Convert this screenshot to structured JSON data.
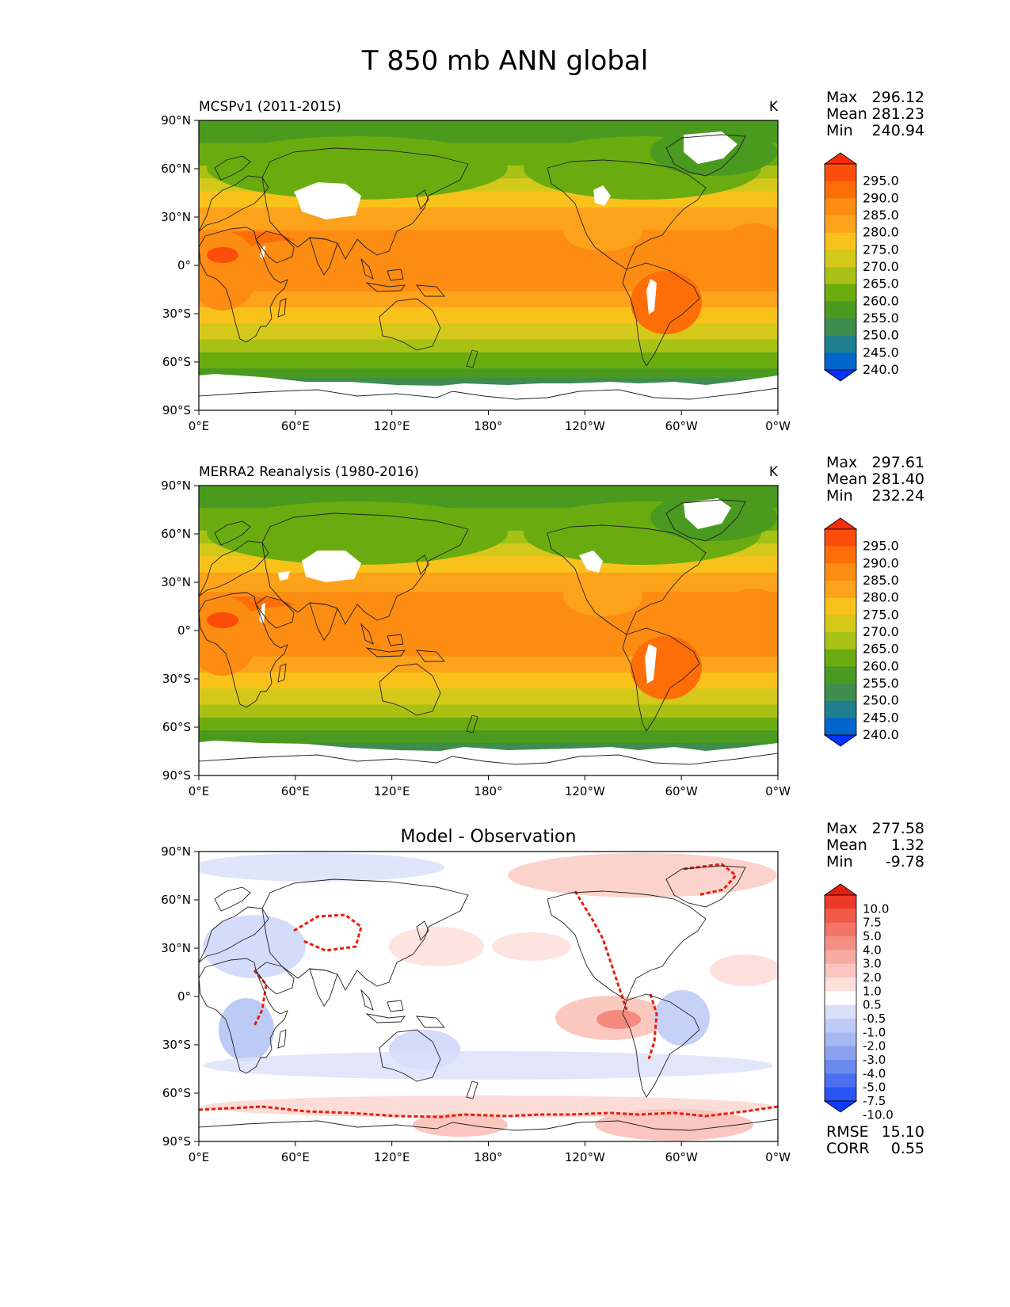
{
  "figure": {
    "title": "T 850 mb ANN global"
  },
  "colors": {
    "abs_levels": [
      "#0033ff",
      "#0066cc",
      "#1f7f8f",
      "#3f8c4f",
      "#4a9a1f",
      "#6aac10",
      "#a7c214",
      "#d4c81a",
      "#f9c21b",
      "#fca31b",
      "#fd8c13",
      "#fd6e08",
      "#fc4e0a",
      "#fb2a0a"
    ],
    "diff_levels": [
      "#0b3bff",
      "#2955f5",
      "#4a6ff0",
      "#6a8aee",
      "#8aa2f0",
      "#a6b8f4",
      "#c0ccf7",
      "#d9e0fa",
      "#ffffff",
      "#fde0dc",
      "#fbc6bf",
      "#f8aba1",
      "#f58f84",
      "#f27466",
      "#ef5a49",
      "#ec3a28",
      "#e81d0a"
    ],
    "land_mask": "#ffffff",
    "coast": "#222222"
  },
  "panels": [
    {
      "id": "model",
      "title": "MCSPv1 (2011-2015)",
      "units": "K",
      "stats": [
        {
          "label": "Max",
          "value": "296.12"
        },
        {
          "label": "Mean",
          "value": "281.23"
        },
        {
          "label": "Min",
          "value": "240.94"
        }
      ],
      "colorbar_labels": [
        "295.0",
        "290.0",
        "285.0",
        "280.0",
        "275.0",
        "270.0",
        "265.0",
        "260.0",
        "255.0",
        "250.0",
        "245.0",
        "240.0"
      ]
    },
    {
      "id": "obs",
      "title": "MERRA2 Reanalysis (1980-2016)",
      "units": "K",
      "stats": [
        {
          "label": "Max",
          "value": "297.61"
        },
        {
          "label": "Mean",
          "value": "281.40"
        },
        {
          "label": "Min",
          "value": "232.24"
        }
      ],
      "colorbar_labels": [
        "295.0",
        "290.0",
        "285.0",
        "280.0",
        "275.0",
        "270.0",
        "265.0",
        "260.0",
        "255.0",
        "250.0",
        "245.0",
        "240.0"
      ]
    },
    {
      "id": "diff",
      "title": "Model - Observation",
      "units": "",
      "stats": [
        {
          "label": "Max",
          "value": "277.58"
        },
        {
          "label": "Mean",
          "value": "1.32"
        },
        {
          "label": "Min",
          "value": "-9.78"
        }
      ],
      "colorbar_labels": [
        "10.0",
        "7.5",
        "5.0",
        "4.0",
        "3.0",
        "2.0",
        "1.0",
        "0.5",
        "-0.5",
        "-1.0",
        "-2.0",
        "-3.0",
        "-4.0",
        "-5.0",
        "-7.5",
        "-10.0"
      ],
      "metrics": [
        {
          "label": "RMSE",
          "value": "15.10"
        },
        {
          "label": "CORR",
          "value": "0.55"
        }
      ]
    }
  ],
  "axes": {
    "x_ticks": [
      "0°E",
      "60°E",
      "120°E",
      "180°",
      "120°W",
      "60°W",
      "0°W"
    ],
    "y_ticks": [
      "90°N",
      "60°N",
      "30°N",
      "0°",
      "30°S",
      "60°S",
      "90°S"
    ]
  },
  "chart_data": [
    {
      "type": "heatmap",
      "title": "MCSPv1 (2011-2015)",
      "units": "K",
      "x_range_deg_east": [
        0,
        360
      ],
      "y_range_deg_lat": [
        -90,
        90
      ],
      "levels": [
        240,
        245,
        250,
        255,
        260,
        265,
        270,
        275,
        280,
        285,
        290,
        295
      ],
      "extend": "both",
      "stats": {
        "max": 296.12,
        "mean": 281.23,
        "min": 240.94
      },
      "zonal_profile_approx": {
        "lat": [
          -75,
          -60,
          -45,
          -30,
          -15,
          0,
          15,
          30,
          45,
          60,
          75,
          85
        ],
        "value": [
          252,
          262,
          270,
          278,
          286,
          288,
          287,
          283,
          276,
          266,
          260,
          258
        ]
      }
    },
    {
      "type": "heatmap",
      "title": "MERRA2 Reanalysis (1980-2016)",
      "units": "K",
      "x_range_deg_east": [
        0,
        360
      ],
      "y_range_deg_lat": [
        -90,
        90
      ],
      "levels": [
        240,
        245,
        250,
        255,
        260,
        265,
        270,
        275,
        280,
        285,
        290,
        295
      ],
      "extend": "both",
      "stats": {
        "max": 297.61,
        "mean": 281.4,
        "min": 232.24
      },
      "zonal_profile_approx": {
        "lat": [
          -75,
          -60,
          -45,
          -30,
          -15,
          0,
          15,
          30,
          45,
          60,
          75,
          85
        ],
        "value": [
          251,
          261,
          270,
          278,
          286,
          289,
          288,
          283,
          276,
          266,
          260,
          258
        ]
      }
    },
    {
      "type": "heatmap",
      "title": "Model - Observation",
      "x_range_deg_east": [
        0,
        360
      ],
      "y_range_deg_lat": [
        -90,
        90
      ],
      "levels": [
        -10,
        -7.5,
        -5,
        -4,
        -3,
        -2,
        -1,
        -0.5,
        0.5,
        1,
        2,
        3,
        4,
        5,
        7.5,
        10
      ],
      "extend": "both",
      "stats": {
        "max": 277.58,
        "mean": 1.32,
        "min": -9.78
      },
      "metrics": {
        "rmse": 15.1,
        "corr": 0.55
      }
    }
  ]
}
